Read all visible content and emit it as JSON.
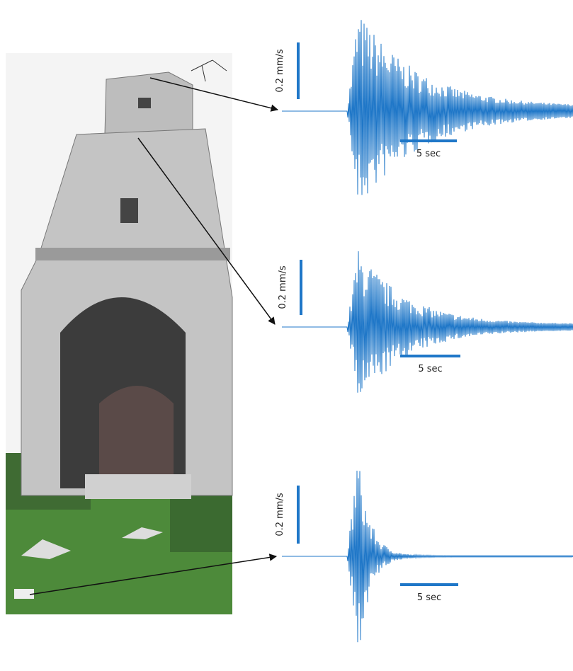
{
  "panels": [
    {
      "scale_label": "0.2 mm/s",
      "time_label": "5 sec"
    },
    {
      "scale_label": "0.2 mm/s",
      "time_label": "5 sec"
    },
    {
      "scale_label": "0.2 mm/s",
      "time_label": "5 sec"
    }
  ]
}
